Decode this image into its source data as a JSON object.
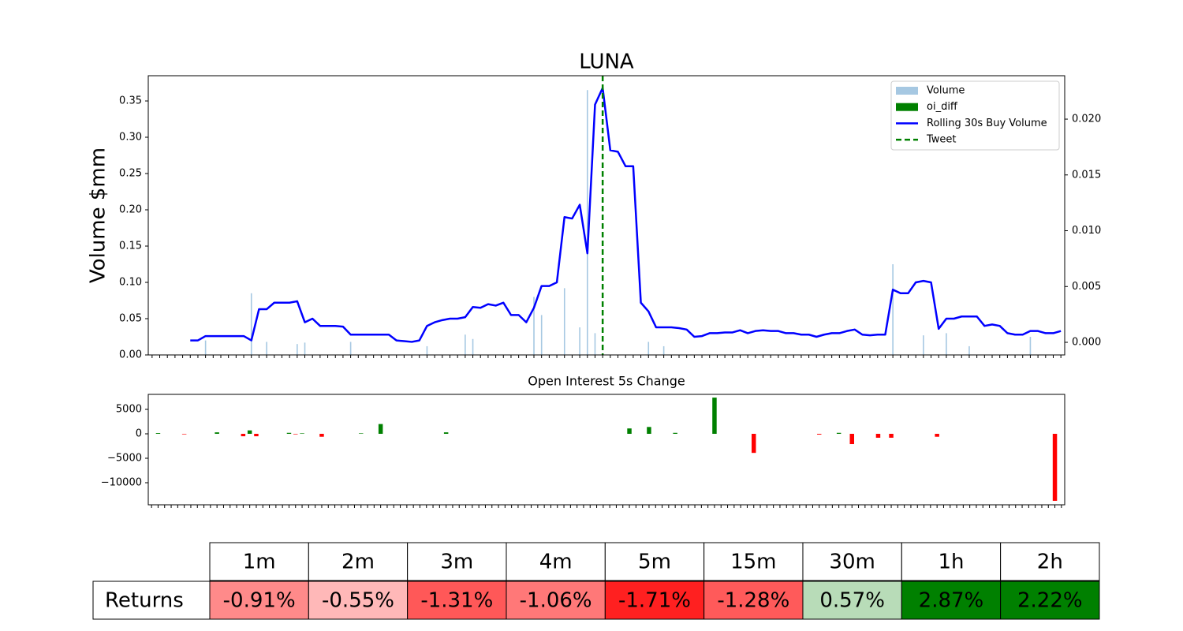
{
  "chart_data": [
    {
      "type": "combo",
      "title": "LUNA",
      "ylabel": "Volume $mm",
      "categories": [
        null,
        null,
        null,
        null,
        null,
        null,
        null,
        null,
        null,
        null,
        null,
        null,
        null,
        null,
        null,
        null,
        null,
        null,
        null,
        null,
        null,
        null,
        null,
        null,
        null,
        null,
        null,
        null,
        null,
        null,
        null,
        null,
        null,
        null,
        null,
        null,
        null,
        null,
        null,
        null,
        null,
        null,
        null,
        null,
        null,
        null,
        null,
        null,
        null,
        null,
        null,
        null,
        null,
        null,
        null,
        null,
        null,
        null,
        null,
        null,
        null,
        null,
        null,
        null,
        null,
        null,
        null,
        null,
        null,
        null,
        null,
        null,
        null,
        null,
        null,
        null,
        null,
        null,
        null,
        null,
        null,
        null,
        null,
        null,
        null,
        null,
        null,
        null,
        null,
        null,
        null,
        null,
        null,
        null,
        null,
        null,
        null,
        null,
        null,
        null,
        null,
        null,
        null,
        null,
        null,
        null,
        null,
        null,
        null,
        null,
        null,
        null,
        null,
        null,
        null,
        null,
        null,
        null,
        null,
        null
      ],
      "ylim": [
        0,
        0.3848
      ],
      "yticks": [
        {
          "value": 0,
          "label": "0.00"
        },
        {
          "value": 0.05,
          "label": "0.05"
        },
        {
          "value": 0.1,
          "label": "0.10"
        },
        {
          "value": 0.15,
          "label": "0.15"
        },
        {
          "value": 0.2,
          "label": "0.20"
        },
        {
          "value": 0.25,
          "label": "0.25"
        },
        {
          "value": 0.3,
          "label": "0.30"
        },
        {
          "value": 0.35,
          "label": "0.35"
        }
      ],
      "y2lim": [
        -0.00113,
        0.02389
      ],
      "y2ticks": [
        {
          "value": 0,
          "label": "0.000"
        },
        {
          "value": 0.005,
          "label": "0.005"
        },
        {
          "value": 0.01,
          "label": "0.010"
        },
        {
          "value": 0.015,
          "label": "0.015"
        },
        {
          "value": 0.02,
          "label": "0.020"
        }
      ],
      "legend": "upper right",
      "series": [
        {
          "name": "Volume",
          "kind": "bar",
          "color": "#a6c8e2",
          "values": [
            0,
            0,
            0,
            0,
            0,
            0,
            0,
            0.02,
            0,
            0,
            0,
            0,
            0,
            0.085,
            0,
            0.018,
            0,
            0,
            0,
            0.015,
            0.017,
            0,
            0,
            0,
            0,
            0,
            0.018,
            0,
            0,
            0,
            0,
            0,
            0,
            0,
            0,
            0,
            0.012,
            0,
            0,
            0,
            0,
            0.028,
            0.022,
            0,
            0,
            0,
            0,
            0,
            0,
            0,
            0.08,
            0.055,
            0,
            0,
            0.092,
            0,
            0.038,
            0.365,
            0.03,
            0,
            0,
            0,
            0,
            0,
            0,
            0.018,
            0,
            0.012,
            0,
            0,
            0,
            0,
            0,
            0,
            0,
            0,
            0,
            0,
            0,
            0,
            0,
            0,
            0,
            0,
            0,
            0,
            0,
            0,
            0,
            0,
            0,
            0,
            0,
            0,
            0,
            0,
            0,
            0.125,
            0,
            0,
            0,
            0.027,
            0,
            0,
            0.03,
            0,
            0,
            0.012,
            0,
            0,
            0,
            0,
            0,
            0,
            0,
            0.025,
            0,
            0,
            0,
            0
          ]
        },
        {
          "name": "oi_diff",
          "kind": "bar",
          "axis": "y2",
          "color": "green",
          "values": [
            0,
            0,
            0,
            0,
            0,
            0,
            0,
            0,
            0,
            0,
            0,
            0,
            0,
            0,
            0,
            0,
            0,
            0,
            0,
            0,
            0,
            0,
            0,
            0,
            0,
            0,
            0,
            0,
            0,
            0,
            0,
            0,
            0,
            0,
            0,
            0,
            0,
            0,
            0,
            0,
            0,
            0,
            0,
            0,
            0,
            0,
            0,
            0,
            0,
            0,
            0,
            0,
            0,
            0,
            0,
            0,
            0,
            0,
            0,
            0,
            0,
            0,
            0,
            0,
            0,
            0,
            0,
            0,
            0,
            0,
            0,
            0,
            0,
            0,
            0,
            0,
            0,
            0,
            0,
            0,
            0,
            0,
            0,
            0,
            0,
            0,
            0,
            0,
            0,
            0,
            0,
            0,
            0,
            0,
            0,
            0,
            0,
            0,
            0,
            0,
            0,
            0,
            0,
            0,
            0,
            0,
            0,
            0,
            0,
            0,
            0,
            0,
            0,
            0,
            0,
            0,
            0,
            0,
            0,
            0
          ]
        },
        {
          "name": "Rolling 30s Buy Volume",
          "kind": "line",
          "color": "blue",
          "values": [
            null,
            null,
            null,
            null,
            null,
            0.02,
            0.02,
            0.026,
            0.026,
            0.026,
            0.026,
            0.026,
            0.026,
            0.02,
            0.063,
            0.063,
            0.072,
            0.072,
            0.072,
            0.074,
            0.045,
            0.05,
            0.04,
            0.04,
            0.04,
            0.039,
            0.028,
            0.028,
            0.028,
            0.028,
            0.028,
            0.028,
            0.02,
            0.019,
            0.018,
            0.02,
            0.04,
            0.045,
            0.048,
            0.05,
            0.05,
            0.052,
            0.066,
            0.065,
            0.07,
            0.068,
            0.072,
            0.055,
            0.055,
            0.045,
            0.065,
            0.095,
            0.095,
            0.1,
            0.19,
            0.188,
            0.207,
            0.14,
            0.345,
            0.368,
            0.282,
            0.28,
            0.26,
            0.26,
            0.072,
            0.06,
            0.038,
            0.038,
            0.038,
            0.037,
            0.035,
            0.025,
            0.026,
            0.03,
            0.03,
            0.031,
            0.031,
            0.034,
            0.03,
            0.033,
            0.034,
            0.033,
            0.033,
            0.03,
            0.03,
            0.028,
            0.028,
            0.025,
            0.028,
            0.03,
            0.03,
            0.033,
            0.035,
            0.028,
            0.027,
            0.028,
            0.028,
            0.09,
            0.085,
            0.085,
            0.1,
            0.102,
            0.1,
            0.036,
            0.05,
            0.05,
            0.053,
            0.053,
            0.053,
            0.04,
            0.042,
            0.04,
            0.03,
            0.028,
            0.028,
            0.033,
            0.033,
            0.03,
            0.03,
            0.033
          ]
        }
      ],
      "tweet": {
        "name": "Tweet",
        "color": "green",
        "at": 59
      }
    },
    {
      "type": "bar",
      "title": "Open Interest 5s Change",
      "categories": [
        null,
        null,
        null,
        null,
        null,
        null,
        null,
        null,
        null,
        null,
        null,
        null,
        null,
        null,
        null,
        null,
        null,
        null,
        null,
        null,
        null,
        null,
        null,
        null,
        null,
        null,
        null,
        null,
        null,
        null,
        null,
        null,
        null,
        null,
        null,
        null,
        null,
        null,
        null,
        null,
        null,
        null,
        null,
        null,
        null,
        null,
        null,
        null,
        null,
        null,
        null,
        null,
        null,
        null,
        null,
        null,
        null,
        null,
        null,
        null,
        null,
        null,
        null,
        null,
        null,
        null,
        null,
        null,
        null,
        null,
        null,
        null,
        null,
        null,
        null,
        null,
        null,
        null,
        null,
        null,
        null,
        null,
        null,
        null,
        null,
        null,
        null,
        null,
        null,
        null,
        null,
        null,
        null,
        null,
        null,
        null,
        null,
        null,
        null,
        null,
        null,
        null,
        null,
        null,
        null,
        null,
        null,
        null,
        null,
        null,
        null,
        null,
        null,
        null,
        null,
        null,
        null,
        null,
        null,
        null,
        null,
        null,
        null,
        null,
        null,
        null,
        null,
        null,
        null,
        null,
        null,
        null,
        null,
        null,
        null,
        null,
        null,
        null,
        null,
        null
      ],
      "values": [
        0,
        150,
        0,
        0,
        0,
        -100,
        0,
        0,
        0,
        0,
        300,
        0,
        0,
        0,
        -500,
        700,
        -500,
        0,
        0,
        0,
        0,
        200,
        -100,
        100,
        0,
        0,
        -600,
        0,
        0,
        0,
        0,
        0,
        100,
        0,
        0,
        2000,
        0,
        0,
        0,
        0,
        0,
        0,
        0,
        0,
        0,
        300,
        0,
        0,
        0,
        0,
        0,
        0,
        0,
        0,
        0,
        0,
        0,
        0,
        0,
        0,
        0,
        0,
        0,
        0,
        0,
        0,
        0,
        0,
        0,
        0,
        0,
        0,
        0,
        1100,
        0,
        0,
        1400,
        0,
        0,
        0,
        200,
        0,
        0,
        0,
        0,
        0,
        7400,
        0,
        0,
        0,
        0,
        0,
        -3900,
        0,
        0,
        0,
        0,
        0,
        0,
        0,
        0,
        0,
        -150,
        0,
        0,
        200,
        0,
        -2100,
        0,
        0,
        0,
        -800,
        0,
        -800,
        0,
        0,
        0,
        0,
        0,
        0,
        -600,
        0,
        0,
        0,
        0,
        0,
        0,
        0,
        0,
        0,
        0,
        0,
        0,
        0,
        0,
        0,
        0,
        0,
        -13700,
        0
      ],
      "pos_color": "green",
      "neg_color": "red",
      "ylim": [
        -14516,
        8065
      ],
      "yticks": [
        {
          "value": -10000,
          "label": "−10000"
        },
        {
          "value": -5000,
          "label": "−5000"
        },
        0,
        5000
      ]
    }
  ],
  "table": {
    "columns": [
      "1m",
      "2m",
      "3m",
      "4m",
      "5m",
      "15m",
      "30m",
      "1h",
      "2h"
    ],
    "row_label": "Returns",
    "values": [
      -0.91,
      -0.55,
      -1.31,
      -1.06,
      -1.71,
      -1.28,
      0.57,
      2.87,
      2.22
    ],
    "value_labels": [
      "-0.91%",
      "-0.55%",
      "-1.31%",
      "-1.06%",
      "-1.71%",
      "-1.28%",
      "0.57%",
      "2.87%",
      "2.22%"
    ],
    "colors": [
      "#ff8a8a",
      "#ffb8b8",
      "#ff5858",
      "#ff7878",
      "#ff2020",
      "#ff5a5a",
      "#b8dcb8",
      "#008000",
      "#008000"
    ]
  }
}
